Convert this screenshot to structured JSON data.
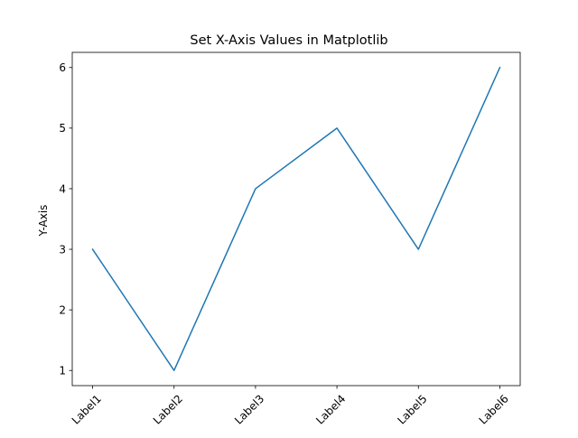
{
  "chart_data": {
    "type": "line",
    "title": "Set X-Axis Values in Matplotlib",
    "xlabel": "",
    "ylabel": "Y-Axis",
    "categories": [
      "Label1",
      "Label2",
      "Label3",
      "Label4",
      "Label5",
      "Label6"
    ],
    "x": [
      1,
      2,
      3,
      4,
      5,
      6
    ],
    "xlim": [
      0.75,
      6.25
    ],
    "ylim": [
      0.75,
      6.25
    ],
    "yticks": [
      1,
      2,
      3,
      4,
      5,
      6
    ],
    "xtick_rotation": 45,
    "grid": false,
    "series": [
      {
        "values": [
          3,
          1,
          4,
          5,
          3,
          6
        ],
        "color": "#1f77b4"
      }
    ]
  }
}
